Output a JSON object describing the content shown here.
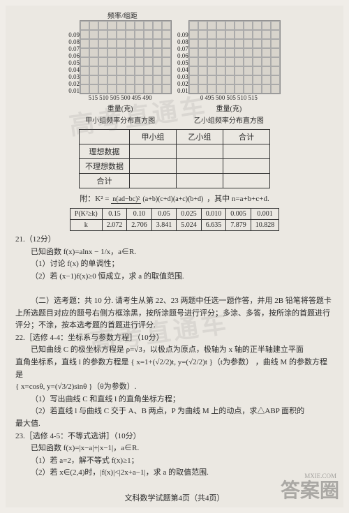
{
  "chart": {
    "ylabel": "频率/组距",
    "yticks": [
      "0.09",
      "0.08",
      "0.07",
      "0.06",
      "0.05",
      "0.04",
      "0.03",
      "0.02",
      "0.01"
    ],
    "left": {
      "xticks": [
        "515",
        "510",
        "505",
        "500",
        "495",
        "490"
      ],
      "unit": "重量(克)",
      "caption": "甲小组频率分布直方图"
    },
    "right": {
      "xticks": [
        "0",
        "495",
        "500",
        "505",
        "510",
        "515"
      ],
      "unit": "重量(克)",
      "caption": "乙小组频率分布直方图"
    },
    "grid_cols": 10,
    "grid_rows": 8,
    "cell_size": 11,
    "bg": "#d8d4cc",
    "border": "#888",
    "line": "#aaa"
  },
  "table1": {
    "headers": [
      "",
      "甲小组",
      "乙小组",
      "合计"
    ],
    "rows": [
      [
        "理想数据",
        "",
        "",
        ""
      ],
      [
        "不理想数据",
        "",
        "",
        ""
      ],
      [
        "合计",
        "",
        "",
        ""
      ]
    ]
  },
  "formula": {
    "pre": "附：K² = ",
    "num": "n(ad−bc)²",
    "den": "(a+b)(c+d)(a+c)(b+d)",
    "post": "，其中 n=a+b+c+d."
  },
  "pk": {
    "r1": [
      "P(K²≥k)",
      "0.15",
      "0.10",
      "0.05",
      "0.025",
      "0.010",
      "0.005",
      "0.001"
    ],
    "r2": [
      "k",
      "2.072",
      "2.706",
      "3.841",
      "5.024",
      "6.635",
      "7.879",
      "10.828"
    ]
  },
  "q21": {
    "num": "21.（12分）",
    "l1": "已知函数 f(x)=alnx − 1/x，a∈R.",
    "l2": "（1）讨论 f(x) 的单调性；",
    "l3": "（2）若 (x−1)f(x)≥0 恒成立，求 a 的取值范围."
  },
  "section": {
    "title": "（二）选考题：共 10 分. 请考生从第 22、23 两题中任选一题作答，并用 2B 铅笔将答题卡上所选题目对应的题号右侧方框涂黑，按所涂题号进行评分；多涂、多答，按所涂的首题进行评分；不涂，按本选考题的首题进行评分."
  },
  "q22": {
    "num": "22.［选修 4-4：坐标系与参数方程］（10分）",
    "l1": "已知曲线 C 的极坐标方程是 ρ=√3，以极点为原点，极轴为 x 轴的正半轴建立平面",
    "l2": "直角坐标系，直线 l 的参数方程是",
    "param_l": "{ x=1+(√2/2)t, y=(√2/2)t }（t为参数）",
    "l3": "，曲线 M 的参数方程是",
    "param_m": "{ x=cosθ, y=(√3/2)sinθ }（θ为参数）.",
    "l4": "（1）写出曲线 C 和直线 l 的直角坐标方程；",
    "l5": "（2）若直线 l 与曲线 C 交于 A、B 两点，P 为曲线 M 上的动点，求△ABP 面积的",
    "l6": "最大值."
  },
  "q23": {
    "num": "23.［选修 4-5：不等式选讲］（10分）",
    "l1": "已知函数 f(x)=|x−a|+|x−1|，a∈R.",
    "l2": "（1）若 a=2，解不等式 f(x)≥1；",
    "l3": "（2）若 x∈(2,4)时，|f(x)|<|2x+a−1|，求 a 的取值范围."
  },
  "footer": "文科数学试题第4页（共4页）",
  "wm": "高考直通车",
  "corner": "答案圈",
  "sub": "MXIE.COM"
}
